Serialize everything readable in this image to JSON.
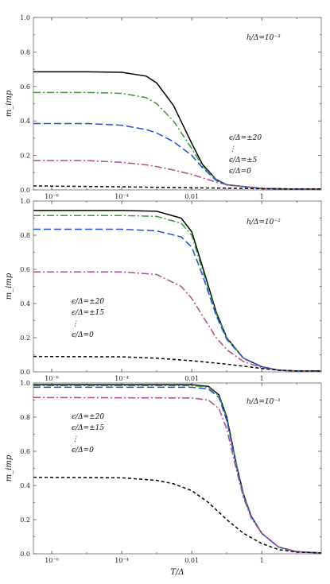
{
  "chart_data": [
    {
      "type": "line",
      "panel": "top",
      "annotation_h": "h/Δ=10⁻³",
      "legend_lines": [
        "ϵ/Δ=±20",
        "⋮",
        "ϵ/Δ=±5",
        "ϵ/Δ=0"
      ],
      "ylabel": "m_imp",
      "xlabel": "",
      "x_scale": "log",
      "xlim": [
        3e-07,
        50
      ],
      "ylim": [
        0,
        1.0
      ],
      "y_ticks": [
        "0.0",
        "0.2",
        "0.4",
        "0.6",
        "0.8",
        "1.0"
      ],
      "x_ticks": [
        "10⁻⁶",
        "10⁻⁴",
        "0.01",
        "1"
      ],
      "series": [
        {
          "color": "#000000",
          "dash": "",
          "values": [
            [
              3e-07,
              0.685
            ],
            [
              1e-05,
              0.685
            ],
            [
              0.0001,
              0.682
            ],
            [
              0.0005,
              0.66
            ],
            [
              0.001,
              0.62
            ],
            [
              0.003,
              0.49
            ],
            [
              0.01,
              0.27
            ],
            [
              0.02,
              0.15
            ],
            [
              0.05,
              0.06
            ],
            [
              0.1,
              0.03
            ],
            [
              1,
              0.008
            ],
            [
              10,
              0.005
            ],
            [
              50,
              0.005
            ]
          ]
        },
        {
          "color": "#3a9a3a",
          "dash": "9 3 2 3",
          "values": [
            [
              3e-07,
              0.565
            ],
            [
              1e-05,
              0.565
            ],
            [
              0.0001,
              0.56
            ],
            [
              0.0005,
              0.535
            ],
            [
              0.001,
              0.5
            ],
            [
              0.003,
              0.4
            ],
            [
              0.01,
              0.24
            ],
            [
              0.02,
              0.14
            ],
            [
              0.05,
              0.06
            ],
            [
              0.1,
              0.03
            ],
            [
              1,
              0.008
            ],
            [
              10,
              0.005
            ],
            [
              50,
              0.005
            ]
          ]
        },
        {
          "color": "#1f4fd8",
          "dash": "9 4",
          "values": [
            [
              3e-07,
              0.385
            ],
            [
              1e-05,
              0.385
            ],
            [
              0.0001,
              0.375
            ],
            [
              0.0005,
              0.35
            ],
            [
              0.001,
              0.33
            ],
            [
              0.003,
              0.28
            ],
            [
              0.01,
              0.2
            ],
            [
              0.02,
              0.13
            ],
            [
              0.05,
              0.055
            ],
            [
              0.1,
              0.03
            ],
            [
              1,
              0.008
            ],
            [
              10,
              0.005
            ],
            [
              50,
              0.005
            ]
          ]
        },
        {
          "color": "#b04a90",
          "dash": "9 3 2 3",
          "values": [
            [
              3e-07,
              0.17
            ],
            [
              1e-05,
              0.17
            ],
            [
              0.0001,
              0.16
            ],
            [
              0.0005,
              0.145
            ],
            [
              0.001,
              0.135
            ],
            [
              0.003,
              0.115
            ],
            [
              0.01,
              0.09
            ],
            [
              0.02,
              0.07
            ],
            [
              0.05,
              0.045
            ],
            [
              0.1,
              0.03
            ],
            [
              1,
              0.008
            ],
            [
              10,
              0.005
            ],
            [
              50,
              0.005
            ]
          ]
        },
        {
          "color": "#000000",
          "dash": "4 3",
          "values": [
            [
              3e-07,
              0.023
            ],
            [
              1e-05,
              0.02
            ],
            [
              0.0001,
              0.018
            ],
            [
              0.001,
              0.015
            ],
            [
              0.01,
              0.012
            ],
            [
              0.1,
              0.01
            ],
            [
              1,
              0.007
            ],
            [
              10,
              0.005
            ],
            [
              50,
              0.005
            ]
          ]
        }
      ]
    },
    {
      "type": "line",
      "panel": "middle",
      "annotation_h": "h/Δ=10⁻²",
      "legend_lines": [
        "ϵ/Δ=±20",
        "ϵ/Δ=±15",
        "⋮",
        "ϵ/Δ=0"
      ],
      "ylabel": "m_imp",
      "xlabel": "",
      "x_scale": "log",
      "xlim": [
        3e-07,
        50
      ],
      "ylim": [
        0,
        1.0
      ],
      "y_ticks": [
        "0.0",
        "0.2",
        "0.4",
        "0.6",
        "0.8",
        "1.0"
      ],
      "x_ticks": [
        "10⁻⁶",
        "10⁻⁴",
        "0.01",
        "1"
      ],
      "series": [
        {
          "color": "#000000",
          "dash": "",
          "values": [
            [
              3e-07,
              0.945
            ],
            [
              0.0001,
              0.945
            ],
            [
              0.001,
              0.94
            ],
            [
              0.005,
              0.9
            ],
            [
              0.01,
              0.82
            ],
            [
              0.02,
              0.62
            ],
            [
              0.05,
              0.35
            ],
            [
              0.1,
              0.2
            ],
            [
              0.3,
              0.08
            ],
            [
              1,
              0.03
            ],
            [
              3,
              0.01
            ],
            [
              10,
              0.005
            ],
            [
              50,
              0.005
            ]
          ]
        },
        {
          "color": "#3a9a3a",
          "dash": "9 3 2 3",
          "values": [
            [
              3e-07,
              0.915
            ],
            [
              0.0001,
              0.915
            ],
            [
              0.001,
              0.91
            ],
            [
              0.005,
              0.87
            ],
            [
              0.01,
              0.8
            ],
            [
              0.02,
              0.6
            ],
            [
              0.05,
              0.34
            ],
            [
              0.1,
              0.2
            ],
            [
              0.3,
              0.08
            ],
            [
              1,
              0.03
            ],
            [
              3,
              0.01
            ],
            [
              10,
              0.005
            ],
            [
              50,
              0.005
            ]
          ]
        },
        {
          "color": "#1f4fd8",
          "dash": "9 4",
          "values": [
            [
              3e-07,
              0.835
            ],
            [
              0.0001,
              0.835
            ],
            [
              0.001,
              0.825
            ],
            [
              0.005,
              0.79
            ],
            [
              0.01,
              0.73
            ],
            [
              0.02,
              0.57
            ],
            [
              0.05,
              0.33
            ],
            [
              0.1,
              0.19
            ],
            [
              0.3,
              0.08
            ],
            [
              1,
              0.03
            ],
            [
              3,
              0.01
            ],
            [
              10,
              0.005
            ],
            [
              50,
              0.005
            ]
          ]
        },
        {
          "color": "#b04a90",
          "dash": "9 3 2 3",
          "values": [
            [
              3e-07,
              0.585
            ],
            [
              0.0001,
              0.585
            ],
            [
              0.001,
              0.57
            ],
            [
              0.005,
              0.5
            ],
            [
              0.01,
              0.43
            ],
            [
              0.02,
              0.33
            ],
            [
              0.05,
              0.2
            ],
            [
              0.1,
              0.13
            ],
            [
              0.3,
              0.06
            ],
            [
              1,
              0.025
            ],
            [
              3,
              0.01
            ],
            [
              10,
              0.005
            ],
            [
              50,
              0.005
            ]
          ]
        },
        {
          "color": "#000000",
          "dash": "4 3",
          "values": [
            [
              3e-07,
              0.09
            ],
            [
              0.0001,
              0.088
            ],
            [
              0.001,
              0.08
            ],
            [
              0.01,
              0.065
            ],
            [
              0.1,
              0.045
            ],
            [
              1,
              0.02
            ],
            [
              3,
              0.01
            ],
            [
              10,
              0.005
            ],
            [
              50,
              0.005
            ]
          ]
        }
      ]
    },
    {
      "type": "line",
      "panel": "bottom",
      "annotation_h": "h/Δ=10⁻¹",
      "legend_lines": [
        "ϵ/Δ=±20",
        "ϵ/Δ=±15",
        "⋮",
        "ϵ/Δ=0"
      ],
      "ylabel": "m_imp",
      "xlabel": "T/Δ",
      "x_scale": "log",
      "xlim": [
        3e-07,
        50
      ],
      "ylim": [
        0,
        1.0
      ],
      "y_ticks": [
        "0.0",
        "0.2",
        "0.4",
        "0.6",
        "0.8",
        "1.0"
      ],
      "x_ticks": [
        "10⁻⁶",
        "10⁻⁴",
        "0.01",
        "1"
      ],
      "series": [
        {
          "color": "#000000",
          "dash": "",
          "values": [
            [
              3e-07,
              0.99
            ],
            [
              0.01,
              0.99
            ],
            [
              0.03,
              0.98
            ],
            [
              0.06,
              0.93
            ],
            [
              0.1,
              0.8
            ],
            [
              0.2,
              0.5
            ],
            [
              0.3,
              0.35
            ],
            [
              0.5,
              0.22
            ],
            [
              1,
              0.12
            ],
            [
              3,
              0.04
            ],
            [
              10,
              0.012
            ],
            [
              50,
              0.005
            ]
          ]
        },
        {
          "color": "#3a9a3a",
          "dash": "9 3 2 3",
          "values": [
            [
              3e-07,
              0.985
            ],
            [
              0.01,
              0.985
            ],
            [
              0.03,
              0.975
            ],
            [
              0.06,
              0.925
            ],
            [
              0.1,
              0.79
            ],
            [
              0.2,
              0.5
            ],
            [
              0.3,
              0.35
            ],
            [
              0.5,
              0.22
            ],
            [
              1,
              0.12
            ],
            [
              3,
              0.04
            ],
            [
              10,
              0.012
            ],
            [
              50,
              0.005
            ]
          ]
        },
        {
          "color": "#1f4fd8",
          "dash": "9 4",
          "values": [
            [
              3e-07,
              0.975
            ],
            [
              0.01,
              0.975
            ],
            [
              0.03,
              0.965
            ],
            [
              0.06,
              0.915
            ],
            [
              0.1,
              0.78
            ],
            [
              0.2,
              0.49
            ],
            [
              0.3,
              0.34
            ],
            [
              0.5,
              0.22
            ],
            [
              1,
              0.12
            ],
            [
              3,
              0.04
            ],
            [
              10,
              0.012
            ],
            [
              50,
              0.005
            ]
          ]
        },
        {
          "color": "#b04a90",
          "dash": "9 3 2 3",
          "values": [
            [
              3e-07,
              0.915
            ],
            [
              0.01,
              0.912
            ],
            [
              0.03,
              0.9
            ],
            [
              0.06,
              0.85
            ],
            [
              0.1,
              0.73
            ],
            [
              0.2,
              0.47
            ],
            [
              0.3,
              0.33
            ],
            [
              0.5,
              0.21
            ],
            [
              1,
              0.12
            ],
            [
              3,
              0.04
            ],
            [
              10,
              0.012
            ],
            [
              50,
              0.005
            ]
          ]
        },
        {
          "color": "#000000",
          "dash": "4 3",
          "values": [
            [
              3e-07,
              0.448
            ],
            [
              0.0001,
              0.445
            ],
            [
              0.001,
              0.43
            ],
            [
              0.003,
              0.41
            ],
            [
              0.01,
              0.37
            ],
            [
              0.03,
              0.3
            ],
            [
              0.1,
              0.2
            ],
            [
              0.3,
              0.12
            ],
            [
              1,
              0.06
            ],
            [
              3,
              0.025
            ],
            [
              10,
              0.01
            ],
            [
              50,
              0.005
            ]
          ]
        }
      ]
    }
  ]
}
